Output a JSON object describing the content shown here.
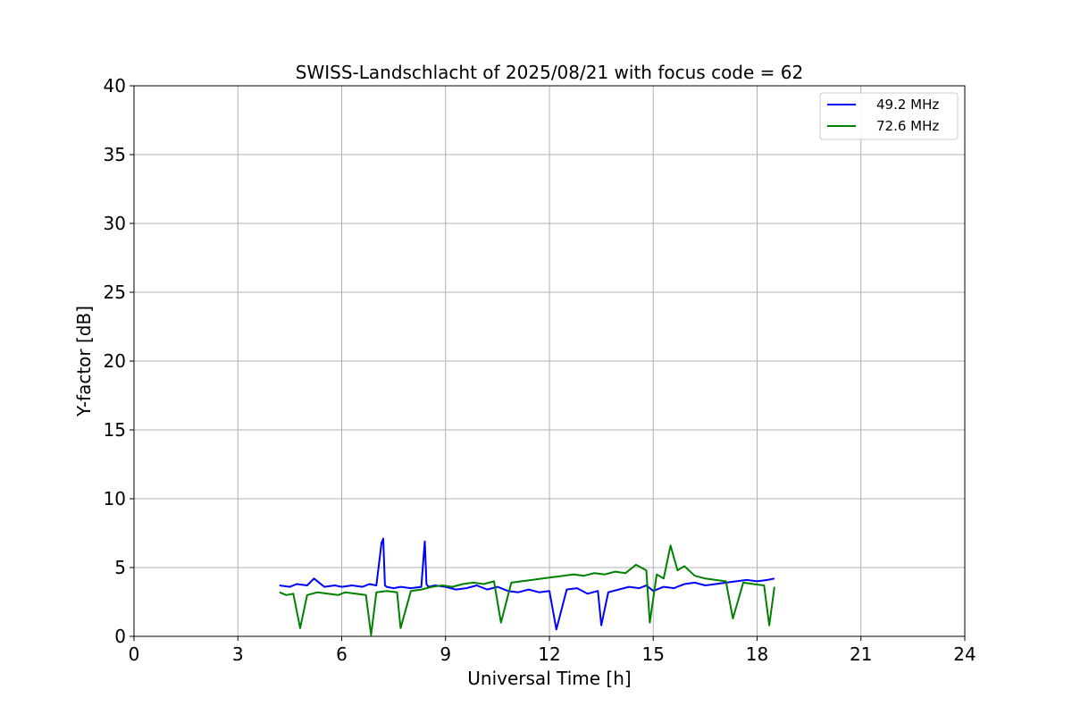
{
  "chart_data": {
    "type": "line",
    "title": "SWISS-Landschlacht of 2025/08/21 with focus code = 62",
    "xlabel": "Universal Time [h]",
    "ylabel": "Y-factor [dB]",
    "xlim": [
      0,
      24
    ],
    "ylim": [
      0,
      40
    ],
    "xticks": [
      0,
      3,
      6,
      9,
      12,
      15,
      18,
      21,
      24
    ],
    "yticks": [
      0,
      5,
      10,
      15,
      20,
      25,
      30,
      35,
      40
    ],
    "xtick_labels": [
      "0",
      "3",
      "6",
      "9",
      "12",
      "15",
      "18",
      "21",
      "24"
    ],
    "ytick_labels": [
      "0",
      "5",
      "10",
      "15",
      "20",
      "25",
      "30",
      "35",
      "40"
    ],
    "grid": true,
    "legend_position": "top-right",
    "series": [
      {
        "name": "49.2 MHz",
        "color": "#0000ff",
        "x": [
          4.2,
          4.5,
          4.7,
          5.0,
          5.2,
          5.5,
          5.8,
          6.0,
          6.3,
          6.6,
          6.8,
          7.0,
          7.15,
          7.2,
          7.25,
          7.3,
          7.5,
          7.7,
          8.0,
          8.3,
          8.4,
          8.45,
          8.5,
          8.7,
          9.0,
          9.3,
          9.6,
          9.9,
          10.2,
          10.5,
          10.8,
          11.1,
          11.4,
          11.7,
          12.0,
          12.2,
          12.5,
          12.8,
          13.1,
          13.4,
          13.5,
          13.7,
          14.0,
          14.3,
          14.6,
          14.8,
          15.0,
          15.3,
          15.6,
          15.9,
          16.2,
          16.5,
          16.8,
          17.1,
          17.4,
          17.7,
          18.0,
          18.3,
          18.5
        ],
        "y": [
          3.7,
          3.6,
          3.8,
          3.7,
          4.2,
          3.6,
          3.7,
          3.6,
          3.7,
          3.6,
          3.8,
          3.7,
          6.8,
          7.1,
          3.7,
          3.6,
          3.5,
          3.6,
          3.5,
          3.6,
          6.9,
          3.8,
          3.6,
          3.7,
          3.6,
          3.4,
          3.5,
          3.7,
          3.4,
          3.6,
          3.3,
          3.2,
          3.4,
          3.2,
          3.3,
          0.5,
          3.4,
          3.5,
          3.1,
          3.3,
          0.8,
          3.2,
          3.4,
          3.6,
          3.5,
          3.7,
          3.3,
          3.6,
          3.5,
          3.8,
          3.9,
          3.7,
          3.8,
          3.9,
          4.0,
          4.1,
          4.0,
          4.1,
          4.2
        ]
      },
      {
        "name": "72.6 MHz",
        "color": "#008000",
        "x": [
          4.2,
          4.4,
          4.6,
          4.8,
          5.0,
          5.3,
          5.6,
          5.9,
          6.1,
          6.4,
          6.7,
          6.85,
          7.0,
          7.3,
          7.6,
          7.7,
          8.0,
          8.3,
          8.6,
          8.9,
          9.2,
          9.5,
          9.8,
          10.1,
          10.4,
          10.6,
          10.9,
          11.2,
          11.5,
          11.8,
          12.1,
          12.4,
          12.7,
          13.0,
          13.3,
          13.6,
          13.9,
          14.2,
          14.5,
          14.8,
          14.9,
          15.1,
          15.3,
          15.5,
          15.7,
          15.9,
          16.2,
          16.5,
          16.8,
          17.1,
          17.3,
          17.6,
          17.9,
          18.2,
          18.35,
          18.5
        ],
        "y": [
          3.2,
          3.0,
          3.1,
          0.6,
          3.0,
          3.2,
          3.1,
          3.0,
          3.2,
          3.1,
          3.0,
          0.1,
          3.2,
          3.3,
          3.2,
          0.6,
          3.3,
          3.4,
          3.6,
          3.7,
          3.6,
          3.8,
          3.9,
          3.8,
          4.0,
          1.0,
          3.9,
          4.0,
          4.1,
          4.2,
          4.3,
          4.4,
          4.5,
          4.4,
          4.6,
          4.5,
          4.7,
          4.6,
          5.2,
          4.8,
          1.0,
          4.5,
          4.2,
          6.6,
          4.8,
          5.1,
          4.4,
          4.2,
          4.1,
          4.0,
          1.3,
          3.9,
          3.8,
          3.7,
          0.8,
          3.6
        ]
      }
    ]
  }
}
